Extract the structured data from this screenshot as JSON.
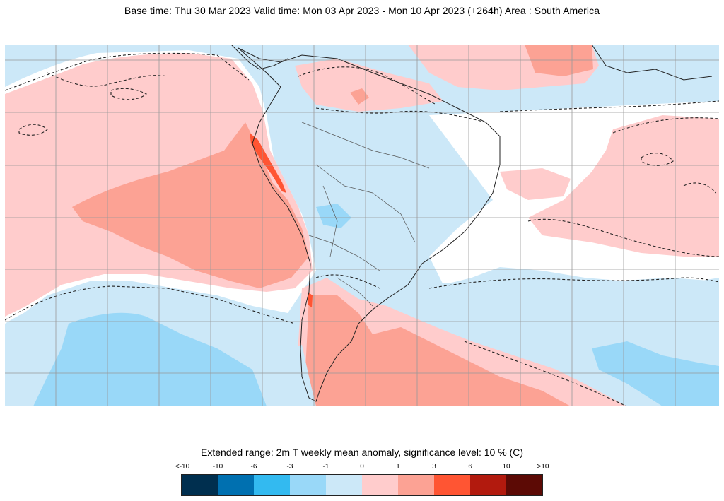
{
  "header": {
    "title": "Base time: Thu 30 Mar 2023 Valid time: Mon 03 Apr 2023 - Mon 10 Apr 2023 (+264h) Area : South America"
  },
  "legend": {
    "title": "Extended range: 2m T weekly mean anomaly, significance level: 10 % (C)",
    "labels": [
      "<-10",
      "-10",
      "-6",
      "-3",
      "-1",
      "0",
      "1",
      "3",
      "6",
      "10",
      ">10"
    ],
    "colors": [
      "#002f4f",
      "#0070b0",
      "#33baf0",
      "#99d8f8",
      "#cce8f8",
      "#ffcccc",
      "#fca294",
      "#ff5533",
      "#b21a0e",
      "#5c0a05"
    ]
  }
}
